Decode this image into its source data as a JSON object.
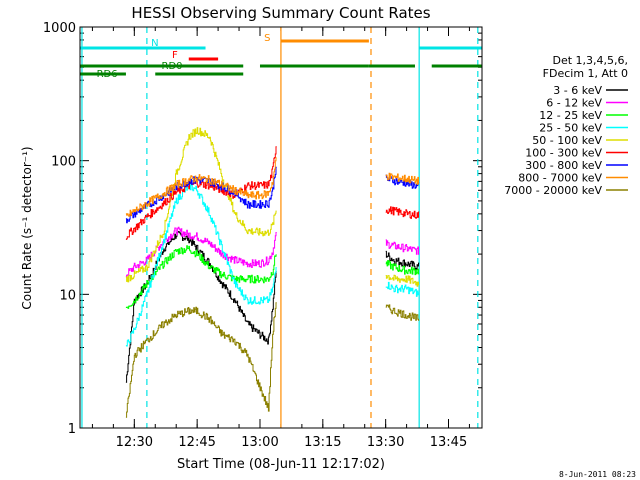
{
  "chart_data": {
    "type": "line",
    "title": "HESSI Observing Summary Count Rates",
    "xlabel": "Start Time (08-Jun-11 12:17:02)",
    "ylabel": "Count Rate (s⁻¹ detector⁻¹)",
    "y_scale": "log",
    "ylim": [
      1,
      1000
    ],
    "xlim": [
      "12:17:02",
      "13:53:00"
    ],
    "x_tick_labels": [
      "12:30",
      "12:45",
      "13:00",
      "13:15",
      "13:30",
      "13:45"
    ],
    "y_tick_labels": [
      "1",
      "10",
      "100",
      "1000"
    ],
    "legend": {
      "placement": "right",
      "header": [
        "Det 1,3,4,5,6,",
        "FDecim 1, Att 0"
      ]
    },
    "flags": [
      {
        "label": "N",
        "color": "#00e5e5",
        "segments": [
          [
            "12:17:02",
            "12:47:00"
          ],
          [
            "13:38:00",
            "13:53:00"
          ]
        ]
      },
      {
        "label": "F",
        "color": "#ff0000",
        "segments": [
          [
            "12:43:00",
            "12:50:00"
          ]
        ]
      },
      {
        "label": "S",
        "color": "#ff8c00",
        "segments": [
          [
            "13:05:00",
            "13:26:00"
          ]
        ]
      },
      {
        "label": "RD0",
        "color": "#008000",
        "segments": [
          [
            "12:17:02",
            "12:56:00"
          ],
          [
            "13:00:00",
            "13:26:00"
          ],
          [
            "13:26:00",
            "13:37:00"
          ],
          [
            "13:41:00",
            "13:53:00"
          ]
        ]
      },
      {
        "label": "RD6",
        "color": "#008000",
        "segments": [
          [
            "12:17:02",
            "12:28:00"
          ],
          [
            "12:35:00",
            "12:56:00"
          ]
        ]
      }
    ],
    "markers": [
      {
        "time": "12:17:30",
        "color": "#00e5e5",
        "style": "solid"
      },
      {
        "time": "12:33:00",
        "color": "#00e5e5",
        "style": "dashed"
      },
      {
        "time": "13:05:00",
        "color": "#ff8c00",
        "style": "solid"
      },
      {
        "time": "13:26:30",
        "color": "#ff8c00",
        "style": "dashed"
      },
      {
        "time": "13:38:00",
        "color": "#00e5e5",
        "style": "solid"
      },
      {
        "time": "13:52:00",
        "color": "#00e5e5",
        "style": "dashed"
      }
    ],
    "segments": [
      {
        "start": "12:28:00",
        "end": "13:04:00"
      },
      {
        "start": "13:30:00",
        "end": "13:38:00"
      }
    ],
    "series": [
      {
        "name": "3 - 6 keV",
        "color": "#000000",
        "points": [
          [
            "12:28:00",
            2.2
          ],
          [
            "12:30:00",
            9
          ],
          [
            "12:33:00",
            12
          ],
          [
            "12:37:00",
            22
          ],
          [
            "12:40:00",
            28
          ],
          [
            "12:43:00",
            26
          ],
          [
            "12:45:00",
            22
          ],
          [
            "12:48:00",
            17
          ],
          [
            "12:51:00",
            12
          ],
          [
            "12:54:00",
            9
          ],
          [
            "12:57:00",
            6
          ],
          [
            "13:00:00",
            5
          ],
          [
            "13:02:00",
            4.5
          ],
          [
            "13:03:00",
            8
          ],
          [
            "13:04:00",
            17
          ],
          [
            "13:30:00",
            20
          ],
          [
            "13:32:00",
            18
          ],
          [
            "13:35:00",
            17
          ],
          [
            "13:38:00",
            16
          ]
        ]
      },
      {
        "name": "6 - 12 keV",
        "color": "#ff00ff",
        "points": [
          [
            "12:28:00",
            14
          ],
          [
            "12:30:00",
            16
          ],
          [
            "12:33:00",
            18
          ],
          [
            "12:37:00",
            25
          ],
          [
            "12:40:00",
            30
          ],
          [
            "12:43:00",
            28
          ],
          [
            "12:45:00",
            27
          ],
          [
            "12:48:00",
            24
          ],
          [
            "12:51:00",
            20
          ],
          [
            "12:54:00",
            18
          ],
          [
            "12:57:00",
            17
          ],
          [
            "13:00:00",
            17
          ],
          [
            "13:02:00",
            18
          ],
          [
            "13:03:00",
            21
          ],
          [
            "13:04:00",
            30
          ],
          [
            "13:30:00",
            24
          ],
          [
            "13:32:00",
            23
          ],
          [
            "13:35:00",
            22
          ],
          [
            "13:38:00",
            21
          ]
        ]
      },
      {
        "name": "12 - 25 keV",
        "color": "#00ff00",
        "points": [
          [
            "12:28:00",
            8
          ],
          [
            "12:30:00",
            9
          ],
          [
            "12:33:00",
            12
          ],
          [
            "12:37:00",
            17
          ],
          [
            "12:40:00",
            21
          ],
          [
            "12:43:00",
            22
          ],
          [
            "12:45:00",
            20
          ],
          [
            "12:48:00",
            16
          ],
          [
            "12:51:00",
            14
          ],
          [
            "12:54:00",
            13
          ],
          [
            "12:57:00",
            13
          ],
          [
            "13:00:00",
            13
          ],
          [
            "13:02:00",
            13
          ],
          [
            "13:03:00",
            15
          ],
          [
            "13:04:00",
            22
          ],
          [
            "13:30:00",
            17
          ],
          [
            "13:32:00",
            16
          ],
          [
            "13:35:00",
            15
          ],
          [
            "13:38:00",
            15
          ]
        ]
      },
      {
        "name": "25 - 50 keV",
        "color": "#00ffff",
        "points": [
          [
            "12:28:00",
            4
          ],
          [
            "12:30:00",
            5.5
          ],
          [
            "12:33:00",
            10
          ],
          [
            "12:37:00",
            25
          ],
          [
            "12:40:00",
            50
          ],
          [
            "12:43:00",
            65
          ],
          [
            "12:45:00",
            60
          ],
          [
            "12:48:00",
            40
          ],
          [
            "12:51:00",
            22
          ],
          [
            "12:54:00",
            12
          ],
          [
            "12:57:00",
            9
          ],
          [
            "13:00:00",
            9
          ],
          [
            "13:02:00",
            9
          ],
          [
            "13:03:00",
            11
          ],
          [
            "13:04:00",
            17
          ],
          [
            "13:30:00",
            12
          ],
          [
            "13:32:00",
            11
          ],
          [
            "13:35:00",
            11
          ],
          [
            "13:38:00",
            10
          ]
        ]
      },
      {
        "name": "50 - 100 keV",
        "color": "#dddd00",
        "points": [
          [
            "12:28:00",
            13
          ],
          [
            "12:30:00",
            14
          ],
          [
            "12:33:00",
            16
          ],
          [
            "12:37:00",
            30
          ],
          [
            "12:40:00",
            80
          ],
          [
            "12:43:00",
            150
          ],
          [
            "12:45:00",
            170
          ],
          [
            "12:48:00",
            150
          ],
          [
            "12:51:00",
            75
          ],
          [
            "12:54:00",
            40
          ],
          [
            "12:57:00",
            30
          ],
          [
            "13:00:00",
            29
          ],
          [
            "13:02:00",
            29
          ],
          [
            "13:03:00",
            33
          ],
          [
            "13:04:00",
            45
          ],
          [
            "13:30:00",
            14
          ],
          [
            "13:32:00",
            13
          ],
          [
            "13:35:00",
            13
          ],
          [
            "13:38:00",
            12
          ]
        ]
      },
      {
        "name": "100 - 300 keV",
        "color": "#ff0000",
        "points": [
          [
            "12:28:00",
            27
          ],
          [
            "12:30:00",
            31
          ],
          [
            "12:33:00",
            38
          ],
          [
            "12:37:00",
            48
          ],
          [
            "12:40:00",
            58
          ],
          [
            "12:43:00",
            65
          ],
          [
            "12:45:00",
            68
          ],
          [
            "12:48:00",
            65
          ],
          [
            "12:51:00",
            60
          ],
          [
            "12:54:00",
            55
          ],
          [
            "12:57:00",
            65
          ],
          [
            "13:00:00",
            65
          ],
          [
            "13:02:00",
            66
          ],
          [
            "13:03:00",
            85
          ],
          [
            "13:04:00",
            140
          ],
          [
            "13:30:00",
            43
          ],
          [
            "13:32:00",
            42
          ],
          [
            "13:35:00",
            40
          ],
          [
            "13:38:00",
            39
          ]
        ]
      },
      {
        "name": "300 - 800 keV",
        "color": "#0000ff",
        "points": [
          [
            "12:28:00",
            36
          ],
          [
            "12:30:00",
            40
          ],
          [
            "12:33:00",
            46
          ],
          [
            "12:37:00",
            55
          ],
          [
            "12:40:00",
            64
          ],
          [
            "12:43:00",
            70
          ],
          [
            "12:45:00",
            72
          ],
          [
            "12:48:00",
            70
          ],
          [
            "12:51:00",
            64
          ],
          [
            "12:54:00",
            58
          ],
          [
            "12:57:00",
            47
          ],
          [
            "13:00:00",
            47
          ],
          [
            "13:02:00",
            48
          ],
          [
            "13:03:00",
            60
          ],
          [
            "13:04:00",
            100
          ],
          [
            "13:30:00",
            73
          ],
          [
            "13:32:00",
            71
          ],
          [
            "13:35:00",
            68
          ],
          [
            "13:38:00",
            64
          ]
        ]
      },
      {
        "name": "800 - 7000 keV",
        "color": "#ff8c00",
        "points": [
          [
            "12:28:00",
            38
          ],
          [
            "12:30:00",
            42
          ],
          [
            "12:33:00",
            48
          ],
          [
            "12:37:00",
            57
          ],
          [
            "12:40:00",
            66
          ],
          [
            "12:43:00",
            72
          ],
          [
            "12:45:00",
            74
          ],
          [
            "12:48:00",
            72
          ],
          [
            "12:51:00",
            66
          ],
          [
            "12:54:00",
            60
          ],
          [
            "12:57:00",
            55
          ],
          [
            "13:00:00",
            55
          ],
          [
            "13:02:00",
            57
          ],
          [
            "13:03:00",
            70
          ],
          [
            "13:04:00",
            110
          ],
          [
            "13:30:00",
            77
          ],
          [
            "13:32:00",
            75
          ],
          [
            "13:35:00",
            73
          ],
          [
            "13:38:00",
            70
          ]
        ]
      },
      {
        "name": "7000 - 20000 keV",
        "color": "#8b8000",
        "points": [
          [
            "12:28:00",
            1.2
          ],
          [
            "12:30:00",
            3.5
          ],
          [
            "12:33:00",
            4.5
          ],
          [
            "12:37:00",
            6
          ],
          [
            "12:40:00",
            7
          ],
          [
            "12:43:00",
            7.5
          ],
          [
            "12:45:00",
            7.5
          ],
          [
            "12:48:00",
            6.5
          ],
          [
            "12:51:00",
            5
          ],
          [
            "12:54:00",
            4.5
          ],
          [
            "12:57:00",
            3.5
          ],
          [
            "13:00:00",
            2
          ],
          [
            "13:02:00",
            1.4
          ],
          [
            "13:03:00",
            5
          ],
          [
            "13:04:00",
            10
          ],
          [
            "13:30:00",
            8
          ],
          [
            "13:32:00",
            7.5
          ],
          [
            "13:35:00",
            7
          ],
          [
            "13:38:00",
            6.5
          ]
        ]
      }
    ]
  },
  "footer_date": "8-Jun-2011 08:23"
}
